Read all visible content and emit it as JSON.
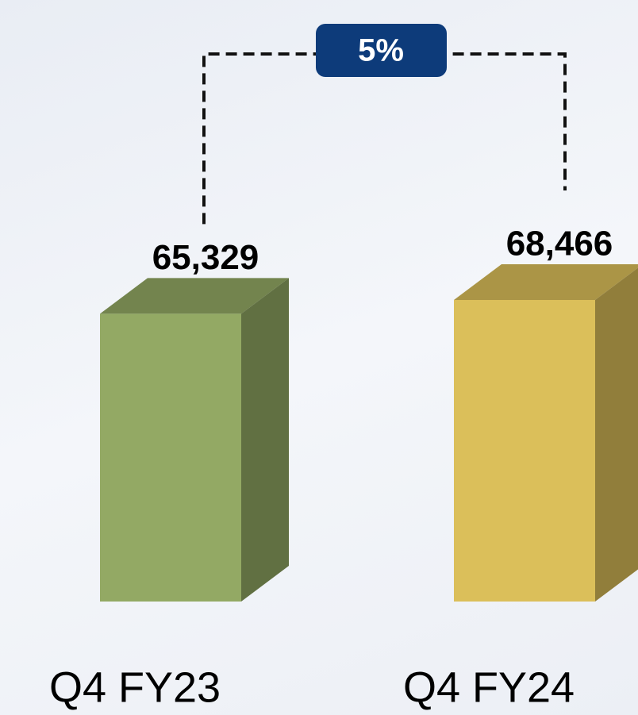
{
  "chart_data": {
    "type": "bar3d",
    "categories": [
      "Q4 FY23",
      "Q4 FY24"
    ],
    "values": [
      65329,
      68466
    ],
    "value_labels": [
      "65,329",
      "68,466"
    ],
    "colors": [
      "#93a964",
      "#dbbf5a"
    ],
    "annotation": "5%"
  }
}
